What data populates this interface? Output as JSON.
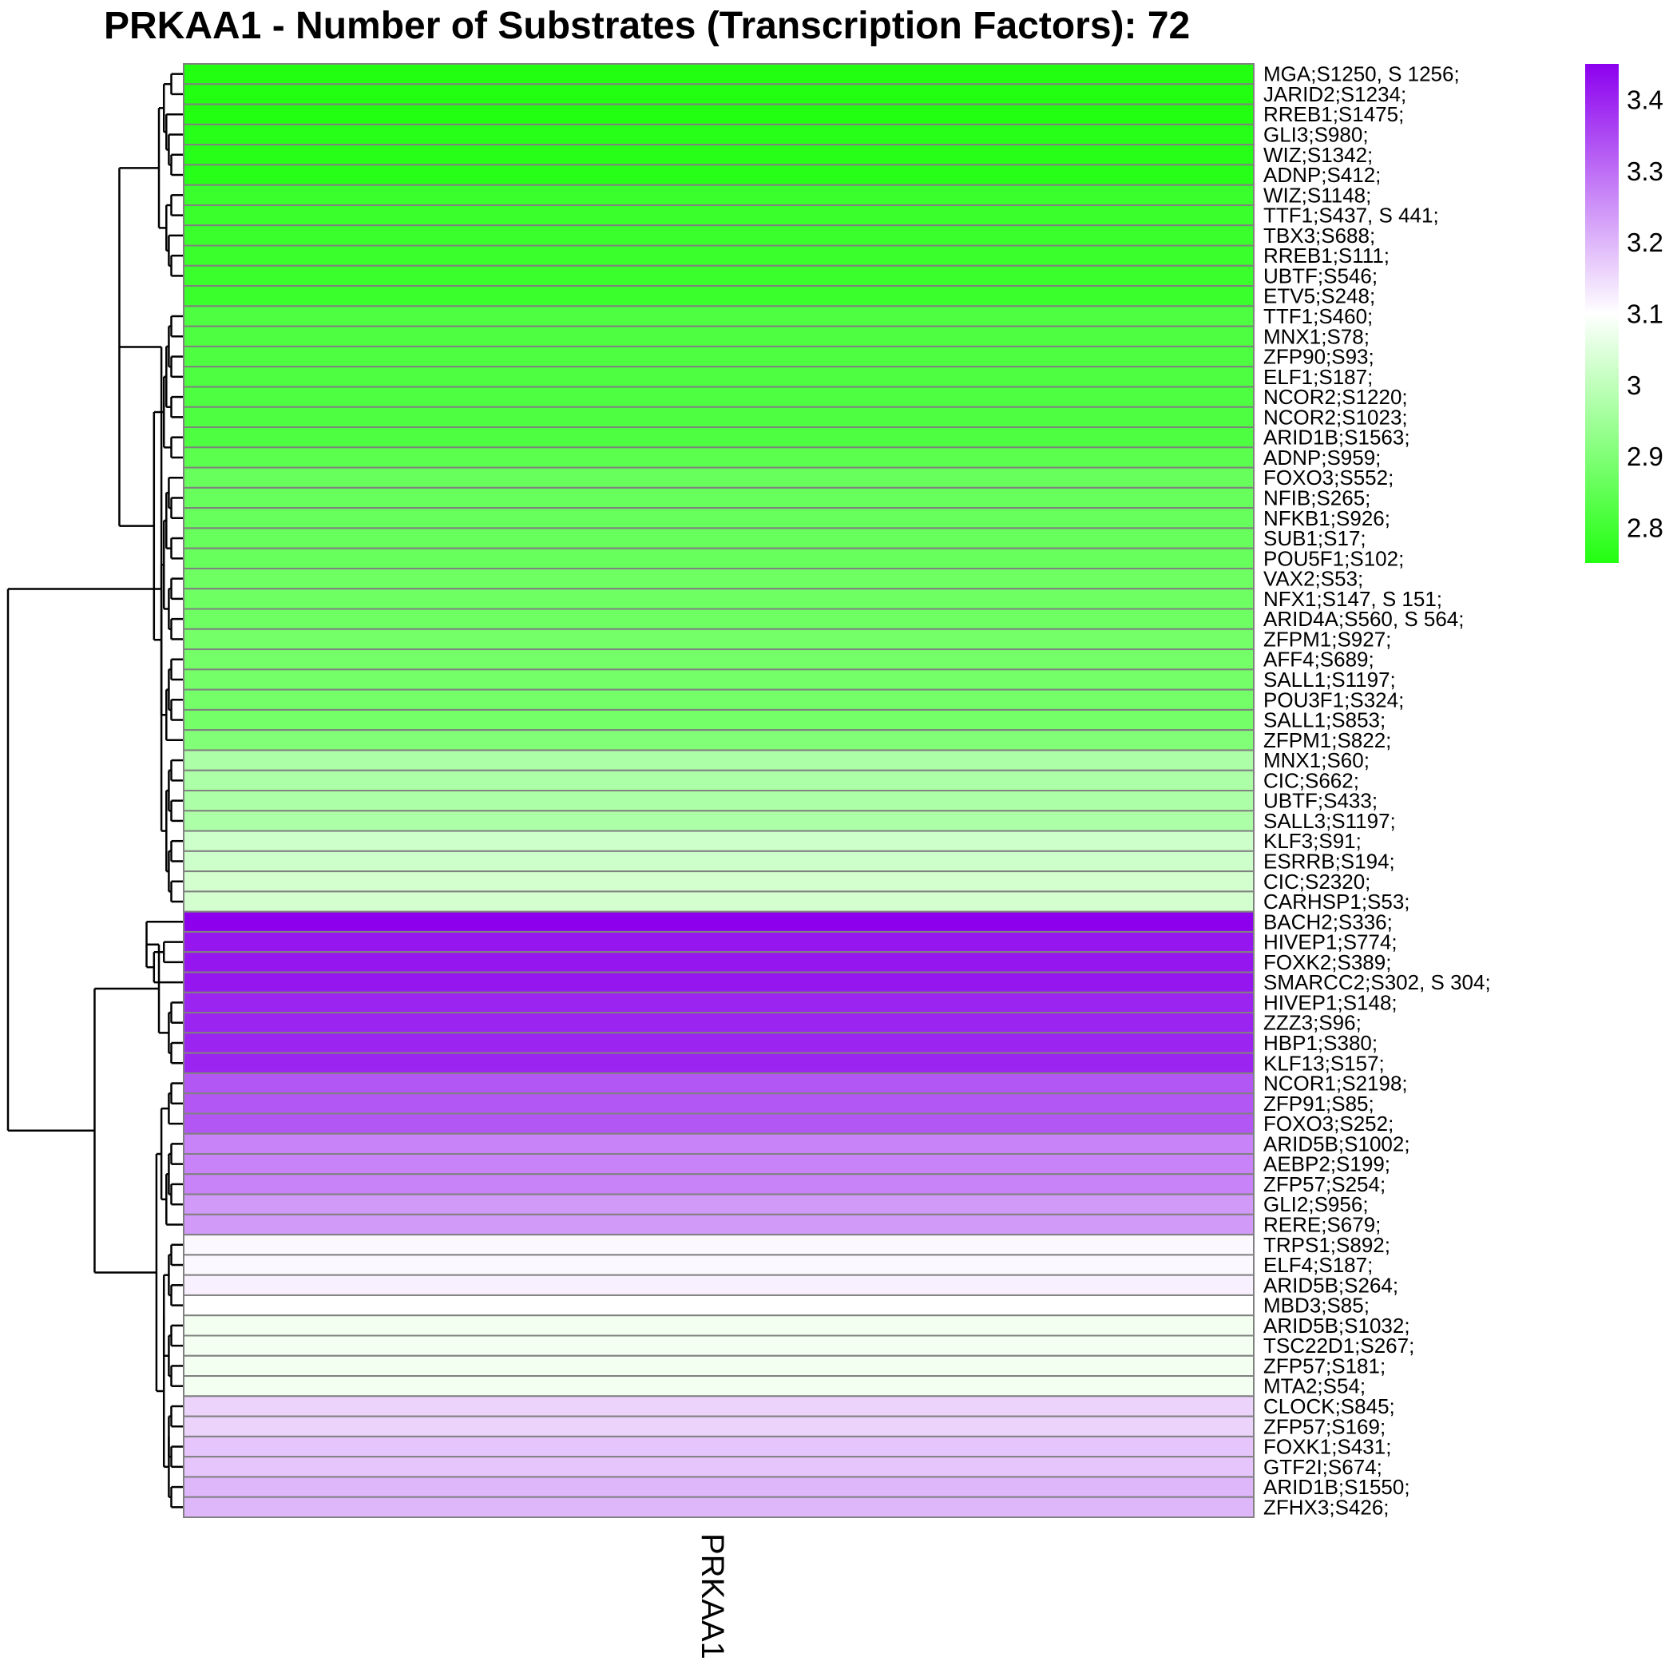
{
  "chart_data": {
    "type": "heatmap",
    "title": "PRKAA1 - Number of Substrates (Transcription Factors): 72",
    "column_label": "PRKAA1",
    "colors": {
      "low": "#22ff11",
      "mid": "#ffffff",
      "high": "#8c00ee",
      "cell_border": "#808080"
    },
    "color_range": [
      2.75,
      3.45
    ],
    "color_mid": 3.1,
    "legend_ticks": [
      "3.4",
      "3.3",
      "3.2",
      "3.1",
      "3",
      "2.9",
      "2.8"
    ],
    "legend_tick_values": [
      3.4,
      3.3,
      3.2,
      3.1,
      3.0,
      2.9,
      2.8
    ],
    "rows": [
      "MGA;S1250, S 1256;",
      "JARID2;S1234;",
      "RREB1;S1475;",
      "GLI3;S980;",
      "WIZ;S1342;",
      "ADNP;S412;",
      "WIZ;S1148;",
      "TTF1;S437, S 441;",
      "TBX3;S688;",
      "RREB1;S111;",
      "UBTF;S546;",
      "ETV5;S248;",
      "TTF1;S460;",
      "MNX1;S78;",
      "ZFP90;S93;",
      "ELF1;S187;",
      "NCOR2;S1220;",
      "NCOR2;S1023;",
      "ARID1B;S1563;",
      "ADNP;S959;",
      "FOXO3;S552;",
      "NFIB;S265;",
      "NFKB1;S926;",
      "SUB1;S17;",
      "POU5F1;S102;",
      "VAX2;S53;",
      "NFX1;S147, S 151;",
      "ARID4A;S560, S 564;",
      "ZFPM1;S927;",
      "AFF4;S689;",
      "SALL1;S1197;",
      "POU3F1;S324;",
      "SALL1;S853;",
      "ZFPM1;S822;",
      "MNX1;S60;",
      "CIC;S662;",
      "UBTF;S433;",
      "SALL3;S1197;",
      "KLF3;S91;",
      "ESRRB;S194;",
      "CIC;S2320;",
      "CARHSP1;S53;",
      "BACH2;S336;",
      "HIVEP1;S774;",
      "FOXK2;S389;",
      "SMARCC2;S302, S 304;",
      "HIVEP1;S148;",
      "ZZZ3;S96;",
      "HBP1;S380;",
      "KLF13;S157;",
      "NCOR1;S2198;",
      "ZFP91;S85;",
      "FOXO3;S252;",
      "ARID5B;S1002;",
      "AEBP2;S199;",
      "ZFP57;S254;",
      "GLI2;S956;",
      "RERE;S679;",
      "TRPS1;S892;",
      "ELF4;S187;",
      "ARID5B;S264;",
      "MBD3;S85;",
      "ARID5B;S1032;",
      "TSC22D1;S267;",
      "ZFP57;S181;",
      "MTA2;S54;",
      "CLOCK;S845;",
      "ZFP57;S169;",
      "FOXK1;S431;",
      "GTF2I;S674;",
      "ARID1B;S1550;",
      "ZFHX3;S426;"
    ],
    "values": [
      2.75,
      2.75,
      2.75,
      2.76,
      2.76,
      2.76,
      2.79,
      2.79,
      2.79,
      2.79,
      2.79,
      2.79,
      2.82,
      2.82,
      2.82,
      2.82,
      2.82,
      2.82,
      2.82,
      2.84,
      2.86,
      2.86,
      2.86,
      2.86,
      2.86,
      2.87,
      2.87,
      2.87,
      2.88,
      2.88,
      2.88,
      2.88,
      2.88,
      2.9,
      2.97,
      2.97,
      2.97,
      2.97,
      3.02,
      3.02,
      3.03,
      3.03,
      3.45,
      3.42,
      3.42,
      3.42,
      3.4,
      3.4,
      3.4,
      3.4,
      3.33,
      3.33,
      3.33,
      3.27,
      3.27,
      3.27,
      3.24,
      3.24,
      3.11,
      3.11,
      3.12,
      3.1,
      3.08,
      3.08,
      3.08,
      3.08,
      3.16,
      3.16,
      3.18,
      3.18,
      3.2,
      3.2
    ],
    "dendrogram": {
      "merges": [
        [
          0,
          1
        ],
        [
          4,
          5
        ],
        [
          3,
          -2
        ],
        [
          2,
          -3
        ],
        [
          -1,
          -4
        ],
        [
          6,
          7
        ],
        [
          9,
          10
        ],
        [
          8,
          -7
        ],
        [
          -6,
          -8
        ],
        [
          -5,
          -9
        ],
        [
          12,
          13
        ],
        [
          14,
          15
        ],
        [
          16,
          17
        ],
        [
          -11,
          -12
        ],
        [
          -14,
          -13
        ],
        [
          18,
          19
        ],
        [
          -15,
          -16
        ],
        [
          21,
          22
        ],
        [
          23,
          24
        ],
        [
          20,
          -18
        ],
        [
          -20,
          -19
        ],
        [
          25,
          26
        ],
        [
          27,
          28
        ],
        [
          -22,
          -23
        ],
        [
          -21,
          -24
        ],
        [
          29,
          30
        ],
        [
          31,
          32
        ],
        [
          -26,
          -27
        ],
        [
          -28,
          33
        ],
        [
          -25,
          -29
        ],
        [
          -17,
          -30
        ],
        [
          -10,
          -31
        ],
        [
          34,
          35
        ],
        [
          36,
          37
        ],
        [
          -33,
          -34
        ],
        [
          38,
          39
        ],
        [
          40,
          41
        ],
        [
          -36,
          -37
        ],
        [
          -35,
          -38
        ],
        [
          -32,
          -39
        ],
        [
          43,
          44
        ],
        [
          45,
          -41
        ],
        [
          42,
          -42
        ],
        [
          46,
          47
        ],
        [
          48,
          49
        ],
        [
          -44,
          -45
        ],
        [
          -43,
          -46
        ],
        [
          50,
          51
        ],
        [
          52,
          -48
        ],
        [
          53,
          54
        ],
        [
          55,
          56
        ],
        [
          -50,
          -51
        ],
        [
          57,
          -52
        ],
        [
          -49,
          -53
        ],
        [
          58,
          59
        ],
        [
          60,
          61
        ],
        [
          -55,
          -56
        ],
        [
          62,
          63
        ],
        [
          64,
          65
        ],
        [
          -58,
          -59
        ],
        [
          -57,
          -60
        ],
        [
          66,
          67
        ],
        [
          68,
          69
        ],
        [
          -62,
          -63
        ],
        [
          70,
          71
        ],
        [
          -64,
          -65
        ],
        [
          -61,
          -66
        ],
        [
          -54,
          -67
        ],
        [
          -47,
          -68
        ],
        [
          -40,
          -69
        ]
      ],
      "heights": [
        0.005,
        0.005,
        0.006,
        0.007,
        0.008,
        0.005,
        0.005,
        0.006,
        0.007,
        0.01,
        0.005,
        0.005,
        0.005,
        0.006,
        0.007,
        0.005,
        0.008,
        0.005,
        0.005,
        0.006,
        0.007,
        0.005,
        0.005,
        0.006,
        0.008,
        0.005,
        0.005,
        0.006,
        0.007,
        0.009,
        0.012,
        0.026,
        0.005,
        0.005,
        0.006,
        0.005,
        0.005,
        0.006,
        0.007,
        0.009,
        0.008,
        0.012,
        0.015,
        0.005,
        0.005,
        0.006,
        0.01,
        0.005,
        0.006,
        0.005,
        0.005,
        0.006,
        0.007,
        0.009,
        0.005,
        0.005,
        0.006,
        0.005,
        0.005,
        0.006,
        0.008,
        0.005,
        0.005,
        0.006,
        0.005,
        0.006,
        0.008,
        0.011,
        0.036,
        0.071
      ]
    }
  }
}
